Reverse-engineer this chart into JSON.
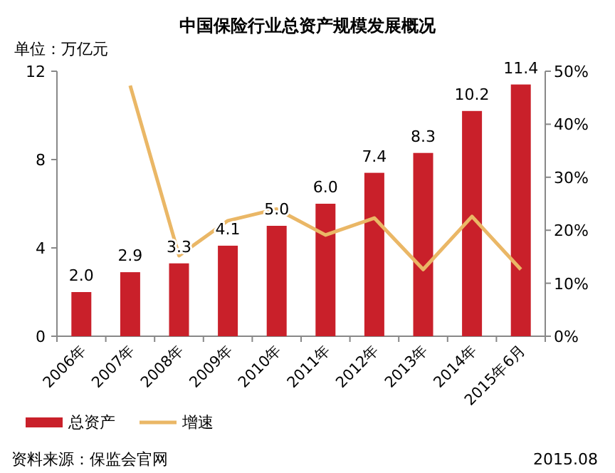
{
  "chart_data": {
    "type": "bar",
    "title": "中国保险行业总资产规模发展概况",
    "ylabel": "单位：万亿元",
    "categories": [
      "2006年",
      "2007年",
      "2008年",
      "2009年",
      "2010年",
      "2011年",
      "2012年",
      "2013年",
      "2014年",
      "2015年6月"
    ],
    "series": [
      {
        "name": "总资产",
        "color": "#c9202a",
        "values": [
          2.0,
          2.9,
          3.3,
          4.1,
          5.0,
          6.0,
          7.4,
          8.3,
          10.2,
          11.4
        ],
        "value_labels": [
          "2.0",
          "2.9",
          "3.3",
          "4.1",
          "5.0",
          "6.0",
          "7.4",
          "8.3",
          "10.2",
          "11.4"
        ]
      },
      {
        "name": "增速",
        "type": "line",
        "axis": "y2",
        "color": "#eab766",
        "values": [
          null,
          47.3,
          15.2,
          21.8,
          24,
          19.1,
          22.3,
          12.6,
          22.6,
          12.6
        ]
      }
    ],
    "ylim": [
      0,
      12
    ],
    "yticks": [
      0,
      4,
      8,
      12
    ],
    "y2lim": [
      0,
      50
    ],
    "y2ticks": [
      {
        "value": 0,
        "label": "0%"
      },
      {
        "value": 10,
        "label": "10%"
      },
      {
        "value": 20,
        "label": "20%"
      },
      {
        "value": 30,
        "label": "30%"
      },
      {
        "value": 40,
        "label": "40%"
      },
      {
        "value": 50,
        "label": "50%"
      }
    ],
    "legend": "bottom left",
    "grid": false,
    "marker": "none",
    "line_style": "solid",
    "annotations": [
      "资料来源：保监会官网",
      "2015.08"
    ]
  }
}
